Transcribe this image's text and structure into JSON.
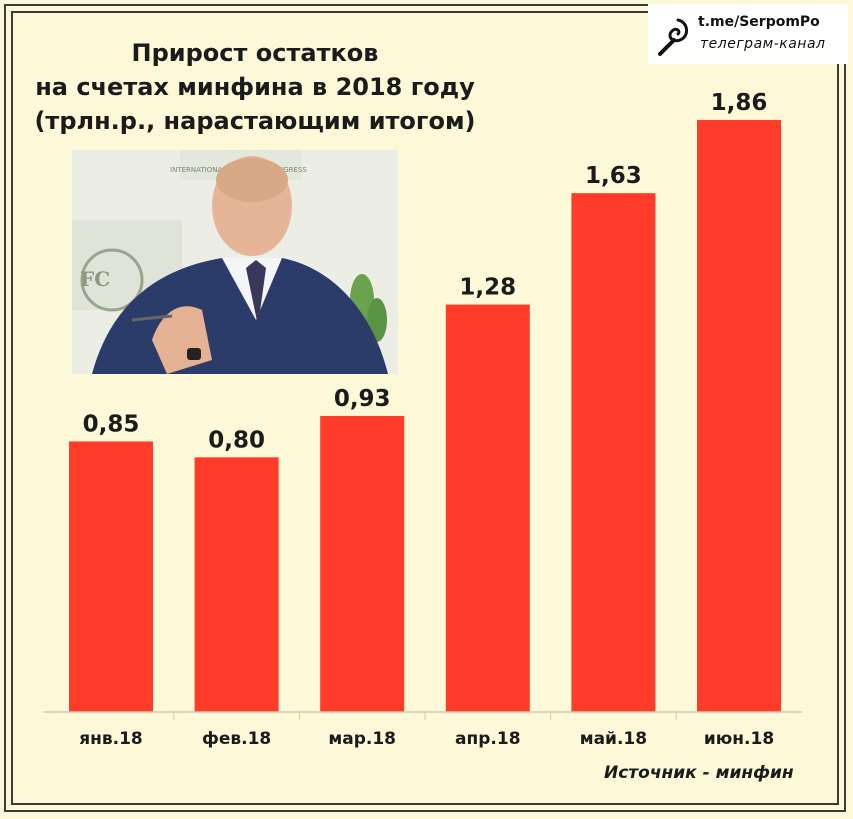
{
  "chart_data": {
    "type": "bar",
    "title_lines": [
      "Прирост остатков",
      "на счетах минфина в 2018 году",
      "(трлн.р., нарастающим итогом)"
    ],
    "categories": [
      "янв.18",
      "фев.18",
      "мар.18",
      "апр.18",
      "май.18",
      "июн.18"
    ],
    "values": [
      0.85,
      0.8,
      0.93,
      1.28,
      1.63,
      1.86
    ],
    "data_labels": [
      "0,85",
      "0,80",
      "0,93",
      "1,28",
      "1,63",
      "1,86"
    ],
    "xlabel": "",
    "ylabel": "",
    "ylim": [
      0,
      2.0
    ],
    "grid": false,
    "bar_color": "#ff3b2a"
  },
  "watermark": {
    "url": "t.me/SerpomPo",
    "subtitle": "телеграм-канал",
    "icon": "spiral-logo-icon"
  },
  "photo": {
    "icon": "portrait-photo",
    "background_text": "INTERNATIONAL FINANCIAL CONGRESS"
  },
  "source": "Источник - минфин",
  "colors": {
    "background": "#fdf8d8",
    "frame": "#3a3a3a",
    "text": "#1b1b1b"
  }
}
